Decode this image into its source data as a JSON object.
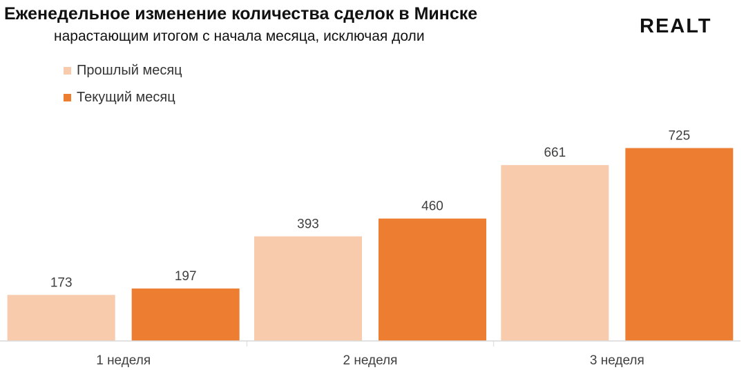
{
  "header": {
    "title": "Еженедельное изменение количества сделок в Минске",
    "subtitle": "нарастающим итогом с начала месяца, исключая доли",
    "logo_text": "REALT"
  },
  "chart_data": {
    "type": "bar",
    "title": "Еженедельное изменение количества сделок в Минске",
    "subtitle": "нарастающим итогом с начала месяца, исключая доли",
    "categories": [
      "1 неделя",
      "2 неделя",
      "3 неделя"
    ],
    "series": [
      {
        "name": "Прошлый месяц",
        "values": [
          173,
          393,
          661
        ],
        "color": "#f8cbad"
      },
      {
        "name": "Текущий месяц",
        "values": [
          197,
          460,
          725
        ],
        "color": "#ed7d31"
      }
    ],
    "ylim": [
      0,
      800
    ],
    "grid": false,
    "legend_position": "top-left",
    "data_labels": true
  }
}
